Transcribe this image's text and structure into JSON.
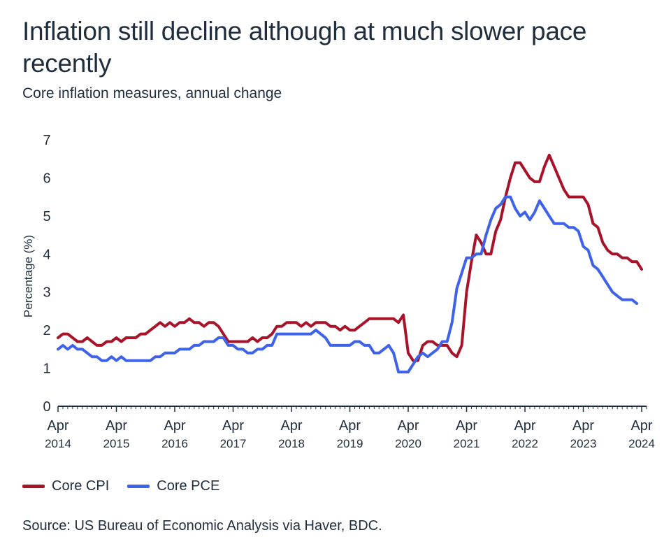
{
  "title": "Inflation still decline although at much slower pace recently",
  "subtitle": "Core inflation measures, annual change",
  "source": "Source: US Bureau of Economic Analysis via Haver, BDC.",
  "colors": {
    "cpi": "#a8132a",
    "pce": "#3f63e8",
    "axis": "#1f2d3d",
    "text": "#1f2d3d"
  },
  "chart_data": {
    "type": "line",
    "title": "",
    "xlabel": "",
    "ylabel": "Percentage (%)",
    "ylim": [
      0,
      7
    ],
    "yticks": [
      0,
      1,
      2,
      3,
      4,
      5,
      6,
      7
    ],
    "grid": false,
    "legend_placement": "bottom-left",
    "x_start": "2014-04",
    "x_end": "2024-05",
    "x_ticks": [
      {
        "month": "Apr",
        "year": "2014"
      },
      {
        "month": "Apr",
        "year": "2015"
      },
      {
        "month": "Apr",
        "year": "2016"
      },
      {
        "month": "Apr",
        "year": "2017"
      },
      {
        "month": "Apr",
        "year": "2018"
      },
      {
        "month": "Apr",
        "year": "2019"
      },
      {
        "month": "Apr",
        "year": "2020"
      },
      {
        "month": "Apr",
        "year": "2021"
      },
      {
        "month": "Apr",
        "year": "2022"
      },
      {
        "month": "Apr",
        "year": "2023"
      },
      {
        "month": "Apr",
        "year": "2024"
      }
    ],
    "series": [
      {
        "name": "Core CPI",
        "color": "#a8132a",
        "values": [
          1.8,
          1.9,
          1.9,
          1.8,
          1.7,
          1.7,
          1.8,
          1.7,
          1.6,
          1.6,
          1.7,
          1.7,
          1.8,
          1.7,
          1.8,
          1.8,
          1.8,
          1.9,
          1.9,
          2.0,
          2.1,
          2.2,
          2.1,
          2.2,
          2.1,
          2.2,
          2.2,
          2.3,
          2.2,
          2.2,
          2.1,
          2.2,
          2.2,
          2.1,
          1.9,
          1.7,
          1.7,
          1.7,
          1.7,
          1.7,
          1.8,
          1.7,
          1.8,
          1.8,
          1.9,
          2.1,
          2.1,
          2.2,
          2.2,
          2.2,
          2.1,
          2.2,
          2.1,
          2.2,
          2.2,
          2.2,
          2.1,
          2.1,
          2.0,
          2.1,
          2.0,
          2.0,
          2.1,
          2.2,
          2.3,
          2.3,
          2.3,
          2.3,
          2.3,
          2.3,
          2.2,
          2.4,
          1.4,
          1.2,
          1.2,
          1.6,
          1.7,
          1.7,
          1.6,
          1.6,
          1.6,
          1.4,
          1.3,
          1.6,
          3.0,
          3.8,
          4.5,
          4.3,
          4.0,
          4.0,
          4.6,
          4.9,
          5.5,
          6.0,
          6.4,
          6.4,
          6.2,
          6.0,
          5.9,
          5.9,
          6.3,
          6.6,
          6.3,
          6.0,
          5.7,
          5.5,
          5.5,
          5.5,
          5.5,
          5.3,
          4.8,
          4.7,
          4.3,
          4.1,
          4.0,
          4.0,
          3.9,
          3.9,
          3.8,
          3.8,
          3.6
        ]
      },
      {
        "name": "Core PCE",
        "color": "#3f63e8",
        "values": [
          1.5,
          1.6,
          1.5,
          1.6,
          1.5,
          1.5,
          1.4,
          1.3,
          1.3,
          1.2,
          1.2,
          1.3,
          1.2,
          1.3,
          1.2,
          1.2,
          1.2,
          1.2,
          1.2,
          1.2,
          1.3,
          1.3,
          1.4,
          1.4,
          1.4,
          1.5,
          1.5,
          1.5,
          1.6,
          1.6,
          1.7,
          1.7,
          1.7,
          1.8,
          1.8,
          1.6,
          1.6,
          1.5,
          1.5,
          1.4,
          1.4,
          1.5,
          1.5,
          1.6,
          1.6,
          1.9,
          1.9,
          1.9,
          1.9,
          1.9,
          1.9,
          1.9,
          1.9,
          2.0,
          1.9,
          1.8,
          1.6,
          1.6,
          1.6,
          1.6,
          1.6,
          1.7,
          1.7,
          1.6,
          1.6,
          1.4,
          1.4,
          1.5,
          1.6,
          1.4,
          0.9,
          0.9,
          0.9,
          1.1,
          1.3,
          1.4,
          1.3,
          1.4,
          1.5,
          1.7,
          1.7,
          2.2,
          3.1,
          3.5,
          3.9,
          3.9,
          4.0,
          4.0,
          4.5,
          4.9,
          5.2,
          5.3,
          5.5,
          5.5,
          5.2,
          5.0,
          5.1,
          4.9,
          5.1,
          5.4,
          5.2,
          5.0,
          4.8,
          4.8,
          4.8,
          4.7,
          4.7,
          4.6,
          4.2,
          4.1,
          3.7,
          3.6,
          3.4,
          3.2,
          3.0,
          2.9,
          2.8,
          2.8,
          2.8,
          2.7
        ]
      }
    ]
  }
}
